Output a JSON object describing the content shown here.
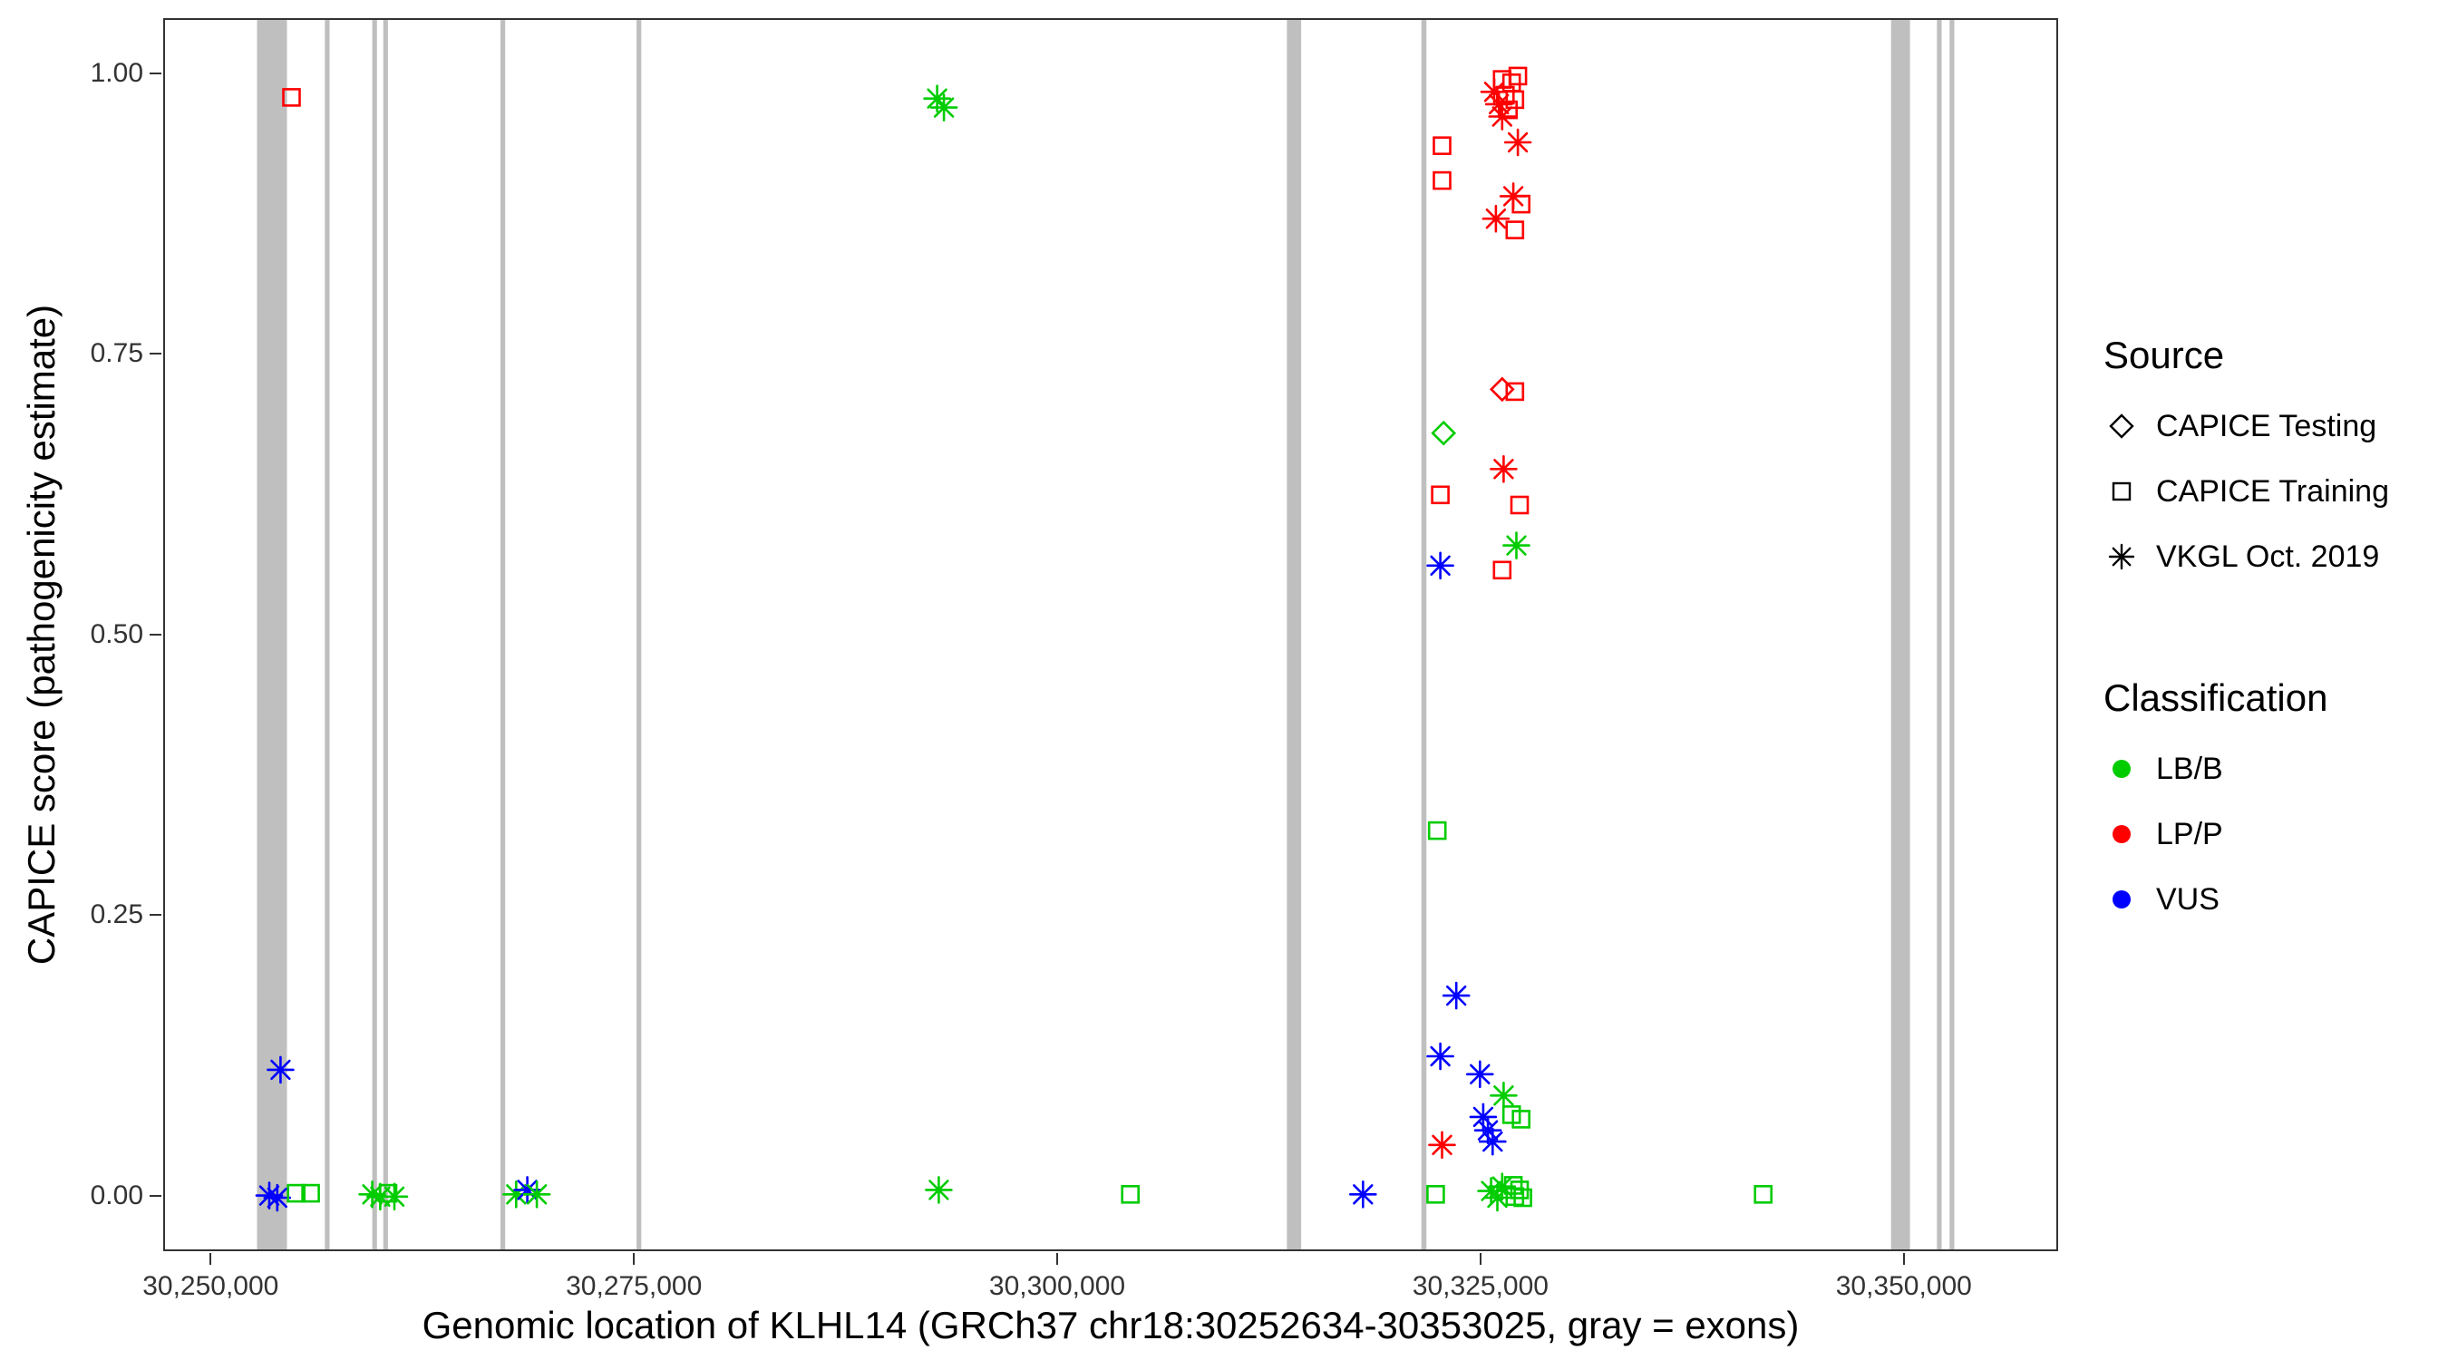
{
  "chart_data": {
    "type": "scatter",
    "title": "",
    "xlabel": "Genomic location of KLHL14 (GRCh37 chr18:30252634-30353025, gray = exons)",
    "ylabel": "CAPICE score (pathogenicity estimate)",
    "xlim": [
      30247200,
      30358900
    ],
    "ylim": [
      -0.046,
      1.049
    ],
    "grid": false,
    "exon_color": "#BFBFBF",
    "x_ticks": [
      {
        "value": 30250000,
        "label": "30,250,000"
      },
      {
        "value": 30275000,
        "label": "30,275,000"
      },
      {
        "value": 30300000,
        "label": "30,300,000"
      },
      {
        "value": 30325000,
        "label": "30,325,000"
      },
      {
        "value": 30350000,
        "label": "30,350,000"
      }
    ],
    "y_ticks": [
      {
        "value": 0.0,
        "label": "0.00"
      },
      {
        "value": 0.25,
        "label": "0.25"
      },
      {
        "value": 0.5,
        "label": "0.50"
      },
      {
        "value": 0.75,
        "label": "0.75"
      },
      {
        "value": 1.0,
        "label": "1.00"
      }
    ],
    "exons": [
      [
        30252634,
        30254400
      ],
      [
        30256640,
        30256920
      ],
      [
        30259440,
        30259720
      ],
      [
        30260090,
        30260370
      ],
      [
        30267010,
        30267290
      ],
      [
        30275050,
        30275330
      ],
      [
        30313460,
        30314300
      ],
      [
        30321400,
        30321700
      ],
      [
        30349140,
        30350260
      ],
      [
        30351850,
        30352130
      ],
      [
        30352600,
        30352880
      ]
    ],
    "colors": {
      "LB/B": "#00CC00",
      "LP/P": "#FF0000",
      "VUS": "#0000FF"
    },
    "legend": {
      "source": {
        "title": "Source",
        "items": [
          {
            "label": "CAPICE Testing",
            "shape": "diamond"
          },
          {
            "label": "CAPICE Training",
            "shape": "square"
          },
          {
            "label": "VKGL Oct. 2019",
            "shape": "asterisk"
          }
        ]
      },
      "classification": {
        "title": "Classification",
        "items": [
          {
            "label": "LB/B",
            "color": "#00CC00"
          },
          {
            "label": "LP/P",
            "color": "#FF0000"
          },
          {
            "label": "VUS",
            "color": "#0000FF"
          }
        ]
      }
    },
    "points": [
      {
        "x": 30254670,
        "y": 0.98,
        "shape": "square",
        "cls": "LP/P"
      },
      {
        "x": 30292800,
        "y": 0.979,
        "shape": "asterisk",
        "cls": "LB/B"
      },
      {
        "x": 30293200,
        "y": 0.971,
        "shape": "asterisk",
        "cls": "LB/B"
      },
      {
        "x": 30326170,
        "y": 0.996,
        "shape": "square",
        "cls": "LP/P"
      },
      {
        "x": 30326730,
        "y": 0.993,
        "shape": "square",
        "cls": "LP/P"
      },
      {
        "x": 30327100,
        "y": 0.999,
        "shape": "square",
        "cls": "LP/P"
      },
      {
        "x": 30326360,
        "y": 0.982,
        "shape": "square",
        "cls": "LP/P"
      },
      {
        "x": 30326920,
        "y": 0.978,
        "shape": "square",
        "cls": "LP/P"
      },
      {
        "x": 30325700,
        "y": 0.985,
        "shape": "asterisk",
        "cls": "LP/P"
      },
      {
        "x": 30325980,
        "y": 0.974,
        "shape": "asterisk",
        "cls": "LP/P"
      },
      {
        "x": 30326540,
        "y": 0.969,
        "shape": "square",
        "cls": "LP/P"
      },
      {
        "x": 30326170,
        "y": 0.963,
        "shape": "asterisk",
        "cls": "LP/P"
      },
      {
        "x": 30327100,
        "y": 0.94,
        "shape": "asterisk",
        "cls": "LP/P"
      },
      {
        "x": 30322620,
        "y": 0.937,
        "shape": "square",
        "cls": "LP/P"
      },
      {
        "x": 30322620,
        "y": 0.906,
        "shape": "square",
        "cls": "LP/P"
      },
      {
        "x": 30326830,
        "y": 0.892,
        "shape": "asterisk",
        "cls": "LP/P"
      },
      {
        "x": 30327290,
        "y": 0.885,
        "shape": "square",
        "cls": "LP/P"
      },
      {
        "x": 30325800,
        "y": 0.872,
        "shape": "asterisk",
        "cls": "LP/P"
      },
      {
        "x": 30326920,
        "y": 0.862,
        "shape": "square",
        "cls": "LP/P"
      },
      {
        "x": 30326170,
        "y": 0.72,
        "shape": "diamond",
        "cls": "LP/P"
      },
      {
        "x": 30326920,
        "y": 0.718,
        "shape": "square",
        "cls": "LP/P"
      },
      {
        "x": 30322710,
        "y": 0.681,
        "shape": "diamond",
        "cls": "LB/B"
      },
      {
        "x": 30326260,
        "y": 0.649,
        "shape": "asterisk",
        "cls": "LP/P"
      },
      {
        "x": 30322520,
        "y": 0.626,
        "shape": "square",
        "cls": "LP/P"
      },
      {
        "x": 30327200,
        "y": 0.617,
        "shape": "square",
        "cls": "LP/P"
      },
      {
        "x": 30327010,
        "y": 0.581,
        "shape": "asterisk",
        "cls": "LB/B"
      },
      {
        "x": 30326170,
        "y": 0.559,
        "shape": "square",
        "cls": "LP/P"
      },
      {
        "x": 30322520,
        "y": 0.563,
        "shape": "asterisk",
        "cls": "VUS"
      },
      {
        "x": 30322340,
        "y": 0.327,
        "shape": "square",
        "cls": "LB/B"
      },
      {
        "x": 30323460,
        "y": 0.18,
        "shape": "asterisk",
        "cls": "VUS"
      },
      {
        "x": 30322520,
        "y": 0.126,
        "shape": "asterisk",
        "cls": "VUS"
      },
      {
        "x": 30324860,
        "y": 0.11,
        "shape": "asterisk",
        "cls": "VUS"
      },
      {
        "x": 30326260,
        "y": 0.091,
        "shape": "asterisk",
        "cls": "LB/B"
      },
      {
        "x": 30325050,
        "y": 0.072,
        "shape": "asterisk",
        "cls": "VUS"
      },
      {
        "x": 30326730,
        "y": 0.074,
        "shape": "square",
        "cls": "LB/B"
      },
      {
        "x": 30327290,
        "y": 0.07,
        "shape": "square",
        "cls": "LB/B"
      },
      {
        "x": 30325330,
        "y": 0.06,
        "shape": "asterisk",
        "cls": "VUS"
      },
      {
        "x": 30325610,
        "y": 0.05,
        "shape": "asterisk",
        "cls": "VUS"
      },
      {
        "x": 30322620,
        "y": 0.047,
        "shape": "asterisk",
        "cls": "LP/P"
      },
      {
        "x": 30254020,
        "y": 0.114,
        "shape": "asterisk",
        "cls": "VUS"
      },
      {
        "x": 30253360,
        "y": 0.002,
        "shape": "asterisk",
        "cls": "VUS"
      },
      {
        "x": 30253830,
        "y": 0.0,
        "shape": "asterisk",
        "cls": "VUS"
      },
      {
        "x": 30254950,
        "y": 0.004,
        "shape": "square",
        "cls": "LB/B"
      },
      {
        "x": 30255800,
        "y": 0.004,
        "shape": "square",
        "cls": "LB/B"
      },
      {
        "x": 30259440,
        "y": 0.003,
        "shape": "asterisk",
        "cls": "LB/B"
      },
      {
        "x": 30259910,
        "y": 0.001,
        "shape": "asterisk",
        "cls": "LB/B"
      },
      {
        "x": 30260370,
        "y": 0.004,
        "shape": "square",
        "cls": "LB/B"
      },
      {
        "x": 30260750,
        "y": 0.001,
        "shape": "asterisk",
        "cls": "LB/B"
      },
      {
        "x": 30267940,
        "y": 0.003,
        "shape": "asterisk",
        "cls": "LB/B"
      },
      {
        "x": 30268600,
        "y": 0.007,
        "shape": "asterisk",
        "cls": "VUS"
      },
      {
        "x": 30269160,
        "y": 0.003,
        "shape": "asterisk",
        "cls": "LB/B"
      },
      {
        "x": 30292900,
        "y": 0.007,
        "shape": "asterisk",
        "cls": "LB/B"
      },
      {
        "x": 30304210,
        "y": 0.003,
        "shape": "square",
        "cls": "LB/B"
      },
      {
        "x": 30317950,
        "y": 0.003,
        "shape": "asterisk",
        "cls": "VUS"
      },
      {
        "x": 30322240,
        "y": 0.003,
        "shape": "square",
        "cls": "LB/B"
      },
      {
        "x": 30325520,
        "y": 0.006,
        "shape": "asterisk",
        "cls": "LB/B"
      },
      {
        "x": 30326170,
        "y": 0.01,
        "shape": "asterisk",
        "cls": "LB/B"
      },
      {
        "x": 30326830,
        "y": 0.011,
        "shape": "square",
        "cls": "LB/B"
      },
      {
        "x": 30327200,
        "y": 0.007,
        "shape": "square",
        "cls": "LB/B"
      },
      {
        "x": 30326920,
        "y": 0.001,
        "shape": "square",
        "cls": "LB/B"
      },
      {
        "x": 30327390,
        "y": 0.0,
        "shape": "square",
        "cls": "LB/B"
      },
      {
        "x": 30325890,
        "y": 0.0,
        "shape": "asterisk",
        "cls": "LB/B"
      },
      {
        "x": 30341590,
        "y": 0.003,
        "shape": "square",
        "cls": "LB/B"
      }
    ]
  }
}
